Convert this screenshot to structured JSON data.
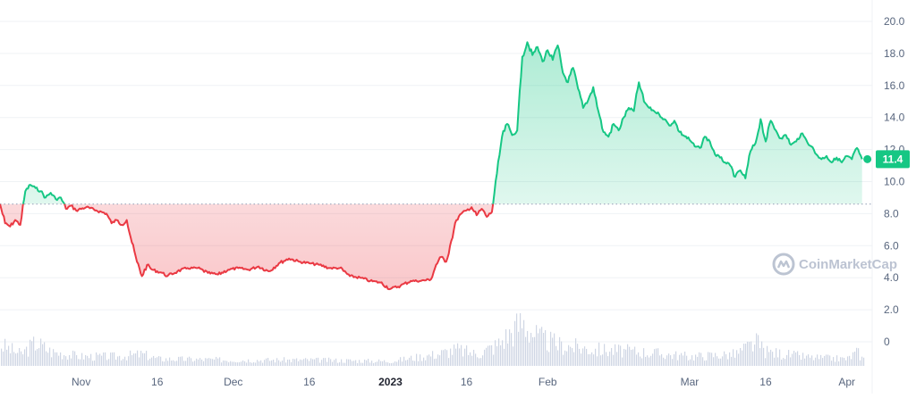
{
  "chart_data": {
    "type": "area",
    "y_axis": {
      "ticks": [
        {
          "value": 20,
          "label": "20.0"
        },
        {
          "value": 18,
          "label": "18.0"
        },
        {
          "value": 16,
          "label": "16.0"
        },
        {
          "value": 14,
          "label": "14.0"
        },
        {
          "value": 12,
          "label": "12.0"
        },
        {
          "value": 10,
          "label": "10.0"
        },
        {
          "value": 8,
          "label": "8.0"
        },
        {
          "value": 6,
          "label": "6.0"
        },
        {
          "value": 4,
          "label": "4.0"
        },
        {
          "value": 2,
          "label": "2.0"
        },
        {
          "value": 0,
          "label": "0"
        }
      ],
      "range": [
        0,
        20
      ]
    },
    "x_axis": {
      "range": [
        "2022-10-16",
        "2023-04-06"
      ],
      "ticks": [
        {
          "date": "2022-11-01",
          "label": "Nov"
        },
        {
          "date": "2022-11-16",
          "label": "16"
        },
        {
          "date": "2022-12-01",
          "label": "Dec"
        },
        {
          "date": "2022-12-16",
          "label": "16"
        },
        {
          "date": "2023-01-01",
          "label": "2023",
          "bold": true
        },
        {
          "date": "2023-01-16",
          "label": "16"
        },
        {
          "date": "2023-02-01",
          "label": "Feb"
        },
        {
          "date": "2023-03-01",
          "label": "Mar"
        },
        {
          "date": "2023-03-16",
          "label": "16"
        },
        {
          "date": "2023-04-01",
          "label": "Apr"
        }
      ]
    },
    "baseline": 8.6,
    "current_price": "11.4",
    "colors": {
      "up": "#16c784",
      "down": "#ea3943",
      "volume": "#cfd6e4",
      "grid": "#eff2f5",
      "baseline": "#a6b0c3"
    },
    "series": [
      {
        "points": [
          [
            "2022-10-16",
            8.6
          ],
          [
            "2022-10-17",
            7.4
          ],
          [
            "2022-10-18",
            7.2
          ],
          [
            "2022-10-19",
            7.6
          ],
          [
            "2022-10-20",
            7.3
          ],
          [
            "2022-10-21",
            9.4
          ],
          [
            "2022-10-22",
            9.8
          ],
          [
            "2022-10-23",
            9.6
          ],
          [
            "2022-10-24",
            9.4
          ],
          [
            "2022-10-25",
            9.0
          ],
          [
            "2022-10-26",
            9.3
          ],
          [
            "2022-10-27",
            8.9
          ],
          [
            "2022-10-28",
            9.0
          ],
          [
            "2022-10-29",
            8.3
          ],
          [
            "2022-10-30",
            8.5
          ],
          [
            "2022-10-31",
            8.2
          ],
          [
            "2022-11-02",
            8.4
          ],
          [
            "2022-11-04",
            8.2
          ],
          [
            "2022-11-06",
            8.0
          ],
          [
            "2022-11-07",
            7.4
          ],
          [
            "2022-11-08",
            7.6
          ],
          [
            "2022-11-09",
            7.3
          ],
          [
            "2022-11-10",
            7.6
          ],
          [
            "2022-11-11",
            6.2
          ],
          [
            "2022-11-12",
            5.0
          ],
          [
            "2022-11-13",
            4.1
          ],
          [
            "2022-11-14",
            4.8
          ],
          [
            "2022-11-15",
            4.5
          ],
          [
            "2022-11-17",
            4.3
          ],
          [
            "2022-11-18",
            4.1
          ],
          [
            "2022-11-20",
            4.4
          ],
          [
            "2022-11-22",
            4.6
          ],
          [
            "2022-11-24",
            4.6
          ],
          [
            "2022-11-26",
            4.3
          ],
          [
            "2022-11-28",
            4.2
          ],
          [
            "2022-11-30",
            4.5
          ],
          [
            "2022-12-02",
            4.6
          ],
          [
            "2022-12-04",
            4.5
          ],
          [
            "2022-12-06",
            4.7
          ],
          [
            "2022-12-08",
            4.4
          ],
          [
            "2022-12-10",
            4.9
          ],
          [
            "2022-12-12",
            5.2
          ],
          [
            "2022-12-14",
            5.0
          ],
          [
            "2022-12-16",
            4.9
          ],
          [
            "2022-12-18",
            4.8
          ],
          [
            "2022-12-20",
            4.6
          ],
          [
            "2022-12-22",
            4.6
          ],
          [
            "2022-12-24",
            4.1
          ],
          [
            "2022-12-26",
            4.0
          ],
          [
            "2022-12-28",
            3.8
          ],
          [
            "2022-12-30",
            3.7
          ],
          [
            "2023-01-01",
            3.3
          ],
          [
            "2023-01-03",
            3.5
          ],
          [
            "2023-01-05",
            3.8
          ],
          [
            "2023-01-07",
            3.8
          ],
          [
            "2023-01-09",
            3.9
          ],
          [
            "2023-01-10",
            4.8
          ],
          [
            "2023-01-11",
            5.3
          ],
          [
            "2023-01-12",
            5.0
          ],
          [
            "2023-01-13",
            6.3
          ],
          [
            "2023-01-14",
            7.6
          ],
          [
            "2023-01-15",
            8.0
          ],
          [
            "2023-01-16",
            8.2
          ],
          [
            "2023-01-17",
            8.4
          ],
          [
            "2023-01-18",
            7.9
          ],
          [
            "2023-01-19",
            8.3
          ],
          [
            "2023-01-20",
            7.8
          ],
          [
            "2023-01-21",
            8.1
          ],
          [
            "2023-01-22",
            10.5
          ],
          [
            "2023-01-23",
            12.8
          ],
          [
            "2023-01-24",
            13.6
          ],
          [
            "2023-01-25",
            12.9
          ],
          [
            "2023-01-26",
            13.2
          ],
          [
            "2023-01-27",
            17.8
          ],
          [
            "2023-01-28",
            18.7
          ],
          [
            "2023-01-29",
            17.9
          ],
          [
            "2023-01-30",
            18.4
          ],
          [
            "2023-01-31",
            17.5
          ],
          [
            "2023-02-01",
            18.2
          ],
          [
            "2023-02-02",
            17.6
          ],
          [
            "2023-02-03",
            18.5
          ],
          [
            "2023-02-04",
            16.8
          ],
          [
            "2023-02-05",
            16.2
          ],
          [
            "2023-02-06",
            17.1
          ],
          [
            "2023-02-07",
            15.8
          ],
          [
            "2023-02-08",
            14.6
          ],
          [
            "2023-02-09",
            15.1
          ],
          [
            "2023-02-10",
            15.9
          ],
          [
            "2023-02-11",
            14.4
          ],
          [
            "2023-02-12",
            13.1
          ],
          [
            "2023-02-13",
            12.8
          ],
          [
            "2023-02-14",
            13.6
          ],
          [
            "2023-02-15",
            13.2
          ],
          [
            "2023-02-16",
            14.0
          ],
          [
            "2023-02-17",
            14.6
          ],
          [
            "2023-02-18",
            14.4
          ],
          [
            "2023-02-19",
            16.2
          ],
          [
            "2023-02-20",
            15.0
          ],
          [
            "2023-02-21",
            14.6
          ],
          [
            "2023-02-22",
            14.4
          ],
          [
            "2023-02-23",
            14.2
          ],
          [
            "2023-02-24",
            13.9
          ],
          [
            "2023-02-25",
            13.5
          ],
          [
            "2023-02-26",
            13.8
          ],
          [
            "2023-02-27",
            13.1
          ],
          [
            "2023-03-01",
            12.6
          ],
          [
            "2023-03-02",
            12.2
          ],
          [
            "2023-03-03",
            12.1
          ],
          [
            "2023-03-04",
            12.8
          ],
          [
            "2023-03-05",
            12.5
          ],
          [
            "2023-03-06",
            11.7
          ],
          [
            "2023-03-07",
            11.5
          ],
          [
            "2023-03-08",
            11.2
          ],
          [
            "2023-03-09",
            11.0
          ],
          [
            "2023-03-10",
            10.3
          ],
          [
            "2023-03-11",
            10.7
          ],
          [
            "2023-03-12",
            10.2
          ],
          [
            "2023-03-13",
            11.9
          ],
          [
            "2023-03-14",
            12.4
          ],
          [
            "2023-03-15",
            13.9
          ],
          [
            "2023-03-16",
            12.5
          ],
          [
            "2023-03-17",
            13.8
          ],
          [
            "2023-03-18",
            13.2
          ],
          [
            "2023-03-19",
            12.7
          ],
          [
            "2023-03-20",
            12.9
          ],
          [
            "2023-03-21",
            12.3
          ],
          [
            "2023-03-22",
            12.5
          ],
          [
            "2023-03-23",
            13.0
          ],
          [
            "2023-03-24",
            12.6
          ],
          [
            "2023-03-25",
            12.2
          ],
          [
            "2023-03-26",
            11.7
          ],
          [
            "2023-03-27",
            11.4
          ],
          [
            "2023-03-28",
            11.6
          ],
          [
            "2023-03-29",
            11.2
          ],
          [
            "2023-03-30",
            11.5
          ],
          [
            "2023-03-31",
            11.2
          ],
          [
            "2023-04-01",
            11.6
          ],
          [
            "2023-04-02",
            11.4
          ],
          [
            "2023-04-03",
            12.1
          ],
          [
            "2023-04-04",
            11.4
          ]
        ]
      }
    ],
    "volume_profile": [
      [
        "2022-10-16",
        0.9
      ],
      [
        "2022-10-20",
        0.5
      ],
      [
        "2022-10-23",
        1.0
      ],
      [
        "2022-10-26",
        0.6
      ],
      [
        "2022-11-01",
        0.4
      ],
      [
        "2022-11-08",
        0.4
      ],
      [
        "2022-11-13",
        0.5
      ],
      [
        "2022-11-16",
        0.3
      ],
      [
        "2022-12-01",
        0.25
      ],
      [
        "2022-12-16",
        0.25
      ],
      [
        "2023-01-01",
        0.2
      ],
      [
        "2023-01-10",
        0.5
      ],
      [
        "2023-01-14",
        0.7
      ],
      [
        "2023-01-18",
        0.5
      ],
      [
        "2023-01-22",
        0.9
      ],
      [
        "2023-01-24",
        1.3
      ],
      [
        "2023-01-27",
        1.9
      ],
      [
        "2023-01-30",
        1.2
      ],
      [
        "2023-02-03",
        0.9
      ],
      [
        "2023-02-10",
        0.7
      ],
      [
        "2023-02-19",
        0.6
      ],
      [
        "2023-03-01",
        0.4
      ],
      [
        "2023-03-10",
        0.5
      ],
      [
        "2023-03-14",
        1.0
      ],
      [
        "2023-03-16",
        0.6
      ],
      [
        "2023-03-25",
        0.35
      ],
      [
        "2023-04-01",
        0.3
      ],
      [
        "2023-04-03",
        0.6
      ],
      [
        "2023-04-04",
        0.3
      ]
    ]
  },
  "watermark": {
    "text": "CoinMarketCap",
    "icon": "coinmarketcap-logo-icon"
  }
}
